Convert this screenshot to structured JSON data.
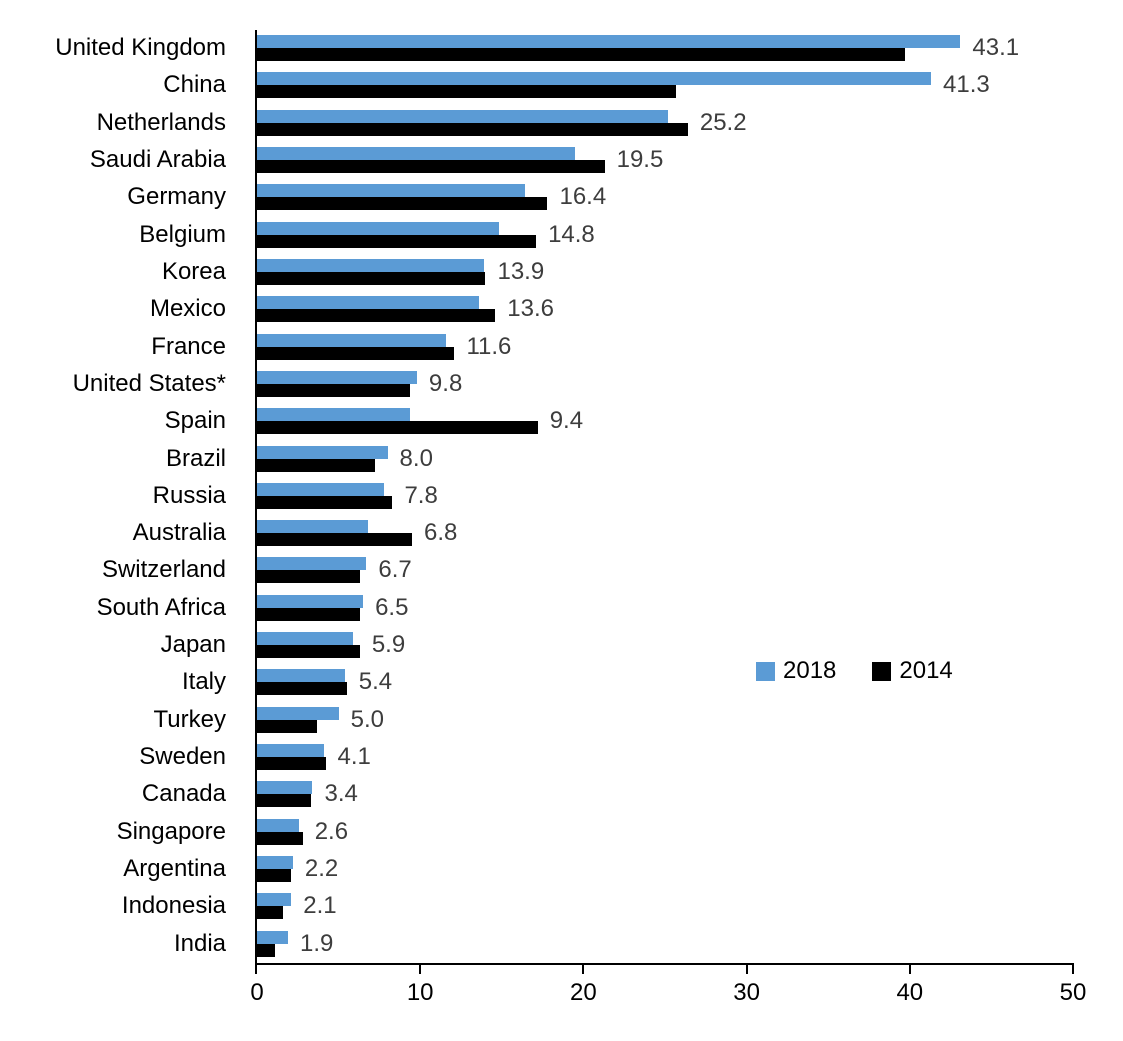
{
  "chart_data": {
    "type": "bar",
    "orientation": "horizontal",
    "title": "",
    "categories": [
      "United Kingdom",
      "China",
      "Netherlands",
      "Saudi Arabia",
      "Germany",
      "Belgium",
      "Korea",
      "Mexico",
      "France",
      "United States*",
      "Spain",
      "Brazil",
      "Russia",
      "Australia",
      "Switzerland",
      "South Africa",
      "Japan",
      "Italy",
      "Turkey",
      "Sweden",
      "Canada",
      "Singapore",
      "Argentina",
      "Indonesia",
      "India"
    ],
    "series": [
      {
        "name": "2018",
        "color": "#5B9BD5",
        "values": [
          43.1,
          41.3,
          25.2,
          19.5,
          16.4,
          14.8,
          13.9,
          13.6,
          11.6,
          9.8,
          9.4,
          8.0,
          7.8,
          6.8,
          6.7,
          6.5,
          5.9,
          5.4,
          5.0,
          4.1,
          3.4,
          2.6,
          2.2,
          2.1,
          1.9
        ]
      },
      {
        "name": "2014",
        "color": "#000000",
        "values": [
          39.7,
          25.7,
          26.4,
          21.3,
          17.8,
          17.1,
          14.0,
          14.6,
          12.1,
          9.4,
          17.2,
          7.2,
          8.3,
          9.5,
          6.3,
          6.3,
          6.3,
          5.5,
          3.7,
          4.2,
          3.3,
          2.8,
          2.1,
          1.6,
          1.1
        ]
      }
    ],
    "data_labels": {
      "series": "2018",
      "labels": [
        "43.1",
        "41.3",
        "25.2",
        "19.5",
        "16.4",
        "14.8",
        "13.9",
        "13.6",
        "11.6",
        "9.8",
        "9.4",
        "8.0",
        "7.8",
        "6.8",
        "6.7",
        "6.5",
        "5.9",
        "5.4",
        "5.0",
        "4.1",
        "3.4",
        "2.6",
        "2.2",
        "2.1",
        "1.9"
      ],
      "color": "#3D3D3D"
    },
    "xlim": [
      0,
      50
    ],
    "x_ticks": [
      "0",
      "10",
      "20",
      "30",
      "40",
      "50"
    ],
    "grid": false,
    "legend": {
      "position": "center-right",
      "entries": [
        {
          "label": "2018",
          "color": "#5B9BD5"
        },
        {
          "label": "2014",
          "color": "#000000"
        }
      ]
    }
  }
}
